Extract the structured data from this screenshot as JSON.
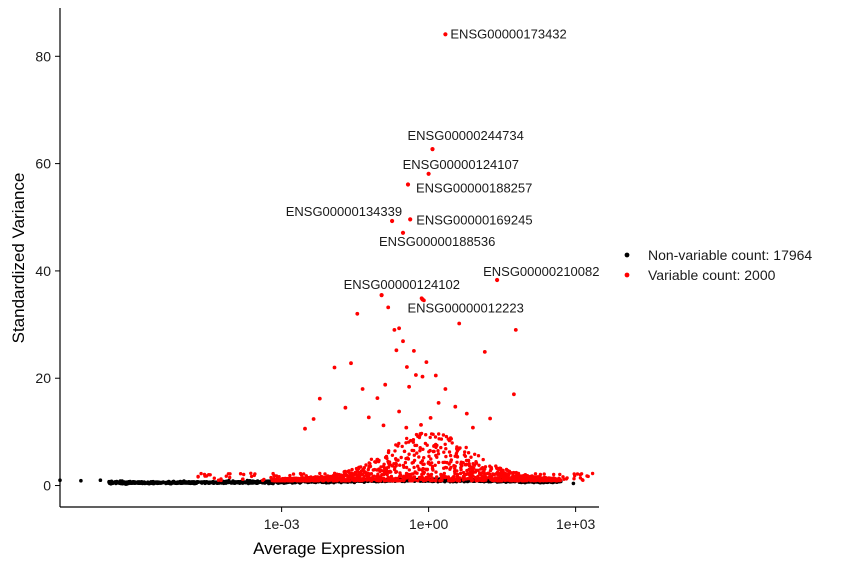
{
  "chart_data": {
    "type": "scatter",
    "xlabel": "Average Expression",
    "ylabel": "Standardized Variance",
    "x_scale": "log10",
    "xlim": [
      3e-08,
      3000
    ],
    "ylim": [
      -4,
      89
    ],
    "x_ticks": [
      {
        "value": 0.001,
        "label": "1e-03"
      },
      {
        "value": 1,
        "label": "1e+00"
      },
      {
        "value": 1000,
        "label": "1e+03"
      }
    ],
    "y_ticks": [
      {
        "value": 0,
        "label": "0"
      },
      {
        "value": 20,
        "label": "20"
      },
      {
        "value": 40,
        "label": "40"
      },
      {
        "value": 60,
        "label": "60"
      },
      {
        "value": 80,
        "label": "80"
      }
    ],
    "grid": false,
    "legend_position": "right",
    "series": [
      {
        "name": "Non-variable count: 17964",
        "color": "#000000"
      },
      {
        "name": "Variable count: 2000",
        "color": "#ff0000"
      }
    ],
    "labeled_points": [
      {
        "gene": "ENSG00000173432",
        "x": 2.2,
        "y": 84.1
      },
      {
        "gene": "ENSG00000244734",
        "x": 1.2,
        "y": 62.7
      },
      {
        "gene": "ENSG00000124107",
        "x": 1.0,
        "y": 58.1
      },
      {
        "gene": "ENSG00000188257",
        "x": 0.38,
        "y": 56.1
      },
      {
        "gene": "ENSG00000169245",
        "x": 0.42,
        "y": 49.6
      },
      {
        "gene": "ENSG00000134339",
        "x": 0.18,
        "y": 49.3
      },
      {
        "gene": "ENSG00000188536",
        "x": 0.3,
        "y": 47.1
      },
      {
        "gene": "ENSG00000210082",
        "x": 25,
        "y": 38.3
      },
      {
        "gene": "ENSG00000124102",
        "x": 0.11,
        "y": 35.5
      },
      {
        "gene": "ENSG00000012223",
        "x": 0.75,
        "y": 34.7
      }
    ],
    "highlight_points": [
      [
        0.72,
        34.9
      ],
      [
        0.8,
        34.5
      ],
      [
        0.15,
        33.2
      ],
      [
        0.035,
        32.0
      ],
      [
        4.2,
        30.2
      ],
      [
        60,
        29.0
      ],
      [
        0.2,
        29.0
      ],
      [
        0.25,
        29.3
      ],
      [
        0.3,
        26.9
      ],
      [
        0.5,
        25.1
      ],
      [
        14,
        24.9
      ],
      [
        0.22,
        25.2
      ],
      [
        0.9,
        23.0
      ],
      [
        0.012,
        22.0
      ],
      [
        0.026,
        22.8
      ],
      [
        0.36,
        22.1
      ],
      [
        0.55,
        20.6
      ],
      [
        0.75,
        20.3
      ],
      [
        1.4,
        20.5
      ],
      [
        0.045,
        18.0
      ],
      [
        0.13,
        18.8
      ],
      [
        0.4,
        18.4
      ],
      [
        2.2,
        18.0
      ],
      [
        55,
        17.0
      ],
      [
        0.006,
        16.2
      ],
      [
        0.09,
        16.3
      ],
      [
        1.6,
        15.4
      ],
      [
        0.02,
        14.5
      ],
      [
        3.5,
        14.7
      ],
      [
        0.25,
        13.8
      ],
      [
        6,
        13.4
      ],
      [
        0.0045,
        12.4
      ],
      [
        0.06,
        12.7
      ],
      [
        1.1,
        12.6
      ],
      [
        18,
        12.5
      ],
      [
        0.12,
        11.2
      ],
      [
        0.7,
        11.3
      ],
      [
        0.003,
        10.6
      ],
      [
        0.35,
        10.8
      ],
      [
        8,
        10.8
      ]
    ],
    "bulk_profile": {
      "note": "variable genes rise above the non-variable band, densest near x = 1",
      "x_range": [
        3e-07,
        500
      ],
      "y_range_variable": [
        0.8,
        10
      ],
      "y_range_nonvariable": [
        0,
        1.4
      ]
    },
    "outliers_nonvariable": [
      [
        3e-08,
        1.0
      ],
      [
        8e-08,
        0.9
      ],
      [
        2e-07,
        1.0
      ],
      [
        900,
        0.4
      ]
    ]
  }
}
